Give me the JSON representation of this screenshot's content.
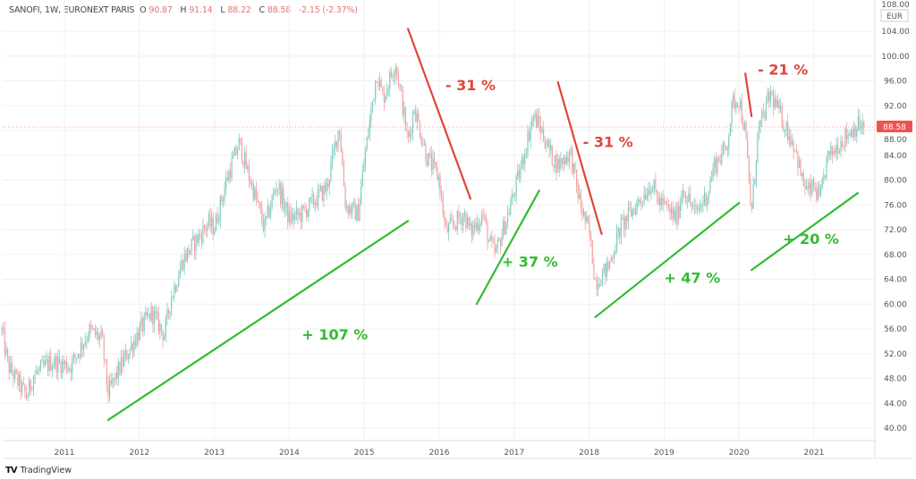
{
  "header": {
    "symbol": "SANOFI, 1W, EURONEXT PARIS",
    "open_label": "O",
    "open": "90.87",
    "high_label": "H",
    "high": "91.14",
    "low_label": "L",
    "low": "88.22",
    "close_label": "C",
    "close": "88.58",
    "change": "-2.15 (-2.37%)"
  },
  "footer": {
    "brand": "TradingView",
    "logo": "TV"
  },
  "chart_data": {
    "type": "candlestick",
    "interval": "1W",
    "currency": "EUR",
    "grid": true,
    "ylim": [
      38,
      106
    ],
    "y_ticks": [
      "108.00",
      "104.00",
      "100.00",
      "96.00",
      "92.00",
      "88.00",
      "84.00",
      "80.00",
      "76.00",
      "72.00",
      "68.00",
      "64.00",
      "60.00",
      "56.00",
      "52.00",
      "48.00",
      "44.00",
      "40.00"
    ],
    "x_ticks": [
      "2011",
      "2012",
      "2013",
      "2014",
      "2015",
      "2016",
      "2017",
      "2018",
      "2019",
      "2020",
      "2021"
    ],
    "last_price": 88.58,
    "last_price_label": "88.58",
    "colors": {
      "up": "#7fcbc2",
      "down": "#f0a2a2",
      "last_price": "#ef5350",
      "decline": "#e0443c",
      "rise": "#33bb33"
    },
    "approx_closes": [
      [
        "2010-03",
        55.7
      ],
      [
        "2010-04",
        50
      ],
      [
        "2010-07",
        45
      ],
      [
        "2010-08",
        48.5
      ],
      [
        "2010-11",
        50.7
      ],
      [
        "2011-02",
        50
      ],
      [
        "2011-05",
        55.7
      ],
      [
        "2011-07",
        54.3
      ],
      [
        "2011-08",
        45.6
      ],
      [
        "2011-10",
        50
      ],
      [
        "2012-01",
        55.7
      ],
      [
        "2012-03",
        58.6
      ],
      [
        "2012-05",
        55
      ],
      [
        "2012-06",
        60.8
      ],
      [
        "2012-08",
        67.2
      ],
      [
        "2012-09",
        68.7
      ],
      [
        "2012-12",
        73
      ],
      [
        "2013-01",
        72.3
      ],
      [
        "2013-03",
        80.2
      ],
      [
        "2013-05",
        86
      ],
      [
        "2013-06",
        82.4
      ],
      [
        "2013-08",
        75.9
      ],
      [
        "2013-09",
        72.3
      ],
      [
        "2013-11",
        79.5
      ],
      [
        "2014-01",
        73.7
      ],
      [
        "2014-03",
        74.5
      ],
      [
        "2014-07",
        78.8
      ],
      [
        "2014-09",
        88.9
      ],
      [
        "2014-10",
        75.9
      ],
      [
        "2014-12",
        74.5
      ],
      [
        "2015-01",
        83.1
      ],
      [
        "2015-03",
        97.5
      ],
      [
        "2015-04",
        93.2
      ],
      [
        "2015-06",
        99
      ],
      [
        "2015-07",
        93
      ],
      [
        "2015-08",
        86
      ],
      [
        "2015-09",
        91.8
      ],
      [
        "2015-11",
        83.8
      ],
      [
        "2016-01",
        80.2
      ],
      [
        "2016-02",
        71.6
      ],
      [
        "2016-05",
        74.5
      ],
      [
        "2016-06",
        71.6
      ],
      [
        "2016-08",
        74.5
      ],
      [
        "2016-09",
        70
      ],
      [
        "2016-10",
        68
      ],
      [
        "2016-12",
        74.5
      ],
      [
        "2017-01",
        78
      ],
      [
        "2017-02",
        81.7
      ],
      [
        "2017-04",
        90.3
      ],
      [
        "2017-05",
        88.9
      ],
      [
        "2017-07",
        83.8
      ],
      [
        "2017-08",
        82.4
      ],
      [
        "2017-10",
        84.5
      ],
      [
        "2017-11",
        78.8
      ],
      [
        "2017-12",
        74.5
      ],
      [
        "2018-01",
        71.6
      ],
      [
        "2018-02",
        63.6
      ],
      [
        "2018-04",
        65.8
      ],
      [
        "2018-06",
        72.3
      ],
      [
        "2018-08",
        75.2
      ],
      [
        "2018-11",
        79.5
      ],
      [
        "2018-12",
        76.9
      ],
      [
        "2019-03",
        73.7
      ],
      [
        "2019-04",
        78.8
      ],
      [
        "2019-06",
        74.5
      ],
      [
        "2019-08",
        78
      ],
      [
        "2019-09",
        82.4
      ],
      [
        "2019-11",
        85.3
      ],
      [
        "2019-12",
        92.5
      ],
      [
        "2020-01",
        93.2
      ],
      [
        "2020-02",
        87.4
      ],
      [
        "2020-03",
        74.5
      ],
      [
        "2020-04",
        87.4
      ],
      [
        "2020-06",
        93.9
      ],
      [
        "2020-07",
        91.8
      ],
      [
        "2020-09",
        87.4
      ],
      [
        "2020-10",
        85.3
      ],
      [
        "2020-11",
        80.2
      ],
      [
        "2020-12",
        78
      ],
      [
        "2021-01",
        78.8
      ],
      [
        "2021-02",
        76.6
      ],
      [
        "2021-03",
        83.1
      ],
      [
        "2021-05",
        86
      ],
      [
        "2021-07",
        88.1
      ],
      [
        "2021-08",
        88.9
      ],
      [
        "2021-09",
        88.58
      ]
    ],
    "annotations": [
      {
        "kind": "decline",
        "label": "- 31 %",
        "from": [
          "2015-08",
          104.4
        ],
        "to": [
          "2016-06",
          77.0
        ],
        "label_at": [
          "2016-02",
          94.5
        ]
      },
      {
        "kind": "rise",
        "label": "+ 107 %",
        "from": [
          "2011-08",
          41.3
        ],
        "to": [
          "2015-08",
          73.4
        ],
        "label_at": [
          "2014-03",
          54.3
        ]
      },
      {
        "kind": "decline",
        "label": "- 31 %",
        "from": [
          "2017-08",
          95.8
        ],
        "to": [
          "2018-03",
          71.3
        ],
        "label_at": [
          "2017-12",
          85.3
        ]
      },
      {
        "kind": "rise",
        "label": "+ 37 %",
        "from": [
          "2016-07",
          60.0
        ],
        "to": [
          "2017-05",
          78.3
        ],
        "label_at": [
          "2016-11",
          66.0
        ]
      },
      {
        "kind": "rise",
        "label": "+ 47 %",
        "from": [
          "2018-02",
          57.9
        ],
        "to": [
          "2020-01",
          76.3
        ],
        "label_at": [
          "2019-01",
          63.4
        ]
      },
      {
        "kind": "decline",
        "label": "- 21 %",
        "from": [
          "2020-02",
          97.2
        ],
        "to": [
          "2020-03",
          90.3
        ],
        "label_at": [
          "2020-04",
          97.0
        ]
      },
      {
        "kind": "rise",
        "label": "+ 20 %",
        "from": [
          "2020-03",
          65.5
        ],
        "to": [
          "2021-08",
          77.9
        ],
        "label_at": [
          "2020-08",
          69.7
        ]
      }
    ]
  }
}
